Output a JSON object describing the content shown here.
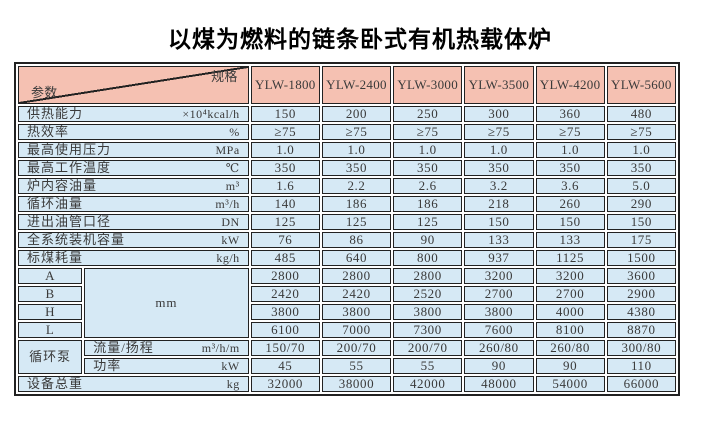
{
  "page_title": "以煤为燃料的链条卧式有机热载体炉",
  "colors": {
    "header_bg": "#f5c1b2",
    "row_bg": "#d6e9f5",
    "border": "#222222",
    "text": "#3a3a3a"
  },
  "table": {
    "corner": {
      "top_right": "规格",
      "bottom_left": "参数"
    },
    "models": [
      "YLW-1800",
      "YLW-2400",
      "YLW-3000",
      "YLW-3500",
      "YLW-4200",
      "YLW-5600"
    ],
    "dim_unit": "mm",
    "pump_group_label": "循环泵",
    "rows": [
      {
        "type": "simple",
        "label": "供热能力",
        "unit": "×10⁴kcal/h",
        "values": [
          "150",
          "200",
          "250",
          "300",
          "360",
          "480"
        ]
      },
      {
        "type": "simple",
        "label": "热效率",
        "unit": "%",
        "values": [
          "≥75",
          "≥75",
          "≥75",
          "≥75",
          "≥75",
          "≥75"
        ]
      },
      {
        "type": "simple",
        "label": "最高使用压力",
        "unit": "MPa",
        "values": [
          "1.0",
          "1.0",
          "1.0",
          "1.0",
          "1.0",
          "1.0"
        ]
      },
      {
        "type": "simple",
        "label": "最高工作温度",
        "unit": "℃",
        "values": [
          "350",
          "350",
          "350",
          "350",
          "350",
          "350"
        ]
      },
      {
        "type": "simple",
        "label": "炉内容油量",
        "unit": "m³",
        "values": [
          "1.6",
          "2.2",
          "2.6",
          "3.2",
          "3.6",
          "5.0"
        ]
      },
      {
        "type": "simple",
        "label": "循环油量",
        "unit": "m³/h",
        "values": [
          "140",
          "186",
          "186",
          "218",
          "260",
          "290"
        ]
      },
      {
        "type": "simple",
        "label": "进出油管口径",
        "unit": "DN",
        "values": [
          "125",
          "125",
          "125",
          "150",
          "150",
          "150"
        ]
      },
      {
        "type": "simple",
        "label": "全系统装机容量",
        "unit": "kW",
        "values": [
          "76",
          "86",
          "90",
          "133",
          "133",
          "175"
        ]
      },
      {
        "type": "simple",
        "label": "标煤耗量",
        "unit": "kg/h",
        "values": [
          "485",
          "640",
          "800",
          "937",
          "1125",
          "1500"
        ]
      },
      {
        "type": "dim",
        "label": "A",
        "values": [
          "2800",
          "2800",
          "2800",
          "3200",
          "3200",
          "3600"
        ]
      },
      {
        "type": "dim",
        "label": "B",
        "values": [
          "2420",
          "2420",
          "2520",
          "2700",
          "2700",
          "2900"
        ]
      },
      {
        "type": "dim",
        "label": "H",
        "values": [
          "3800",
          "3800",
          "3800",
          "3800",
          "4000",
          "4380"
        ]
      },
      {
        "type": "dim",
        "label": "L",
        "values": [
          "6100",
          "7000",
          "7300",
          "7600",
          "8100",
          "8870"
        ]
      },
      {
        "type": "pump",
        "label": "流量/扬程",
        "unit": "m³/h/m",
        "values": [
          "150/70",
          "200/70",
          "200/70",
          "260/80",
          "260/80",
          "300/80"
        ]
      },
      {
        "type": "pump",
        "label": "功率",
        "unit": "kW",
        "values": [
          "45",
          "55",
          "55",
          "90",
          "90",
          "110"
        ]
      },
      {
        "type": "simple",
        "label": "设备总重",
        "unit": "kg",
        "values": [
          "32000",
          "38000",
          "42000",
          "48000",
          "54000",
          "66000"
        ]
      }
    ]
  }
}
